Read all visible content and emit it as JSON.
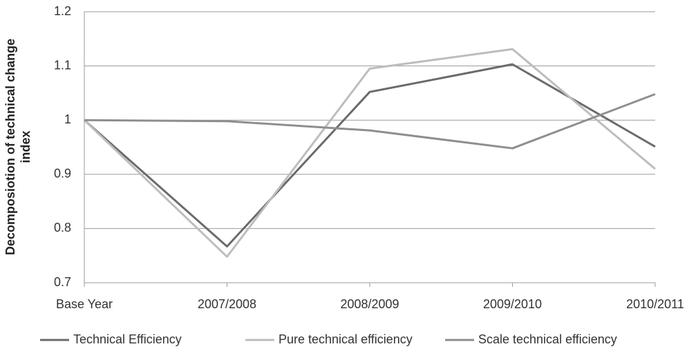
{
  "chart_data": {
    "type": "line",
    "y_label": "Decomposiotion of technical change index",
    "categories": [
      "Base Year",
      "2007/2008",
      "2008/2009",
      "2009/2010",
      "2010/2011"
    ],
    "series": [
      {
        "name": "Technical Efficiency",
        "color": "#6b6b6b",
        "values": [
          1.0,
          0.767,
          1.052,
          1.103,
          0.951
        ]
      },
      {
        "name": "Pure technical efficiency",
        "color": "#bdbdbd",
        "values": [
          1.0,
          0.748,
          1.095,
          1.131,
          0.91
        ]
      },
      {
        "name": "Scale technical efficiency",
        "color": "#8e8e8e",
        "values": [
          1.0,
          0.998,
          0.981,
          0.948,
          1.048
        ]
      }
    ],
    "ylim": [
      0.7,
      1.2
    ],
    "yticks": [
      0.7,
      0.8,
      0.9,
      1,
      1.1,
      1.2
    ],
    "grid": true,
    "legend": "bottom"
  }
}
